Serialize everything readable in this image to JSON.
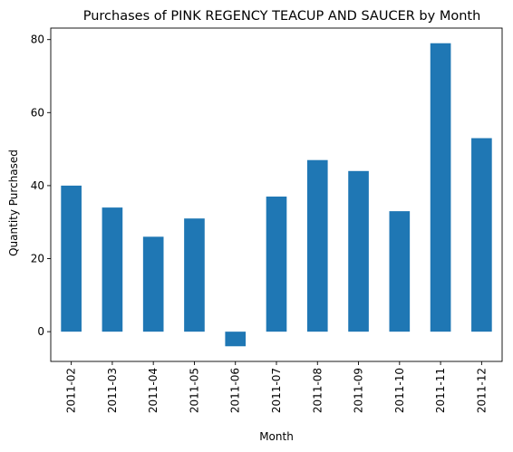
{
  "chart_data": {
    "type": "bar",
    "title": "Purchases of PINK REGENCY TEACUP AND SAUCER by Month",
    "xlabel": "Month",
    "ylabel": "Quantity Purchased",
    "categories": [
      "2011-02",
      "2011-03",
      "2011-04",
      "2011-05",
      "2011-06",
      "2011-07",
      "2011-08",
      "2011-09",
      "2011-10",
      "2011-11",
      "2011-12"
    ],
    "values": [
      40,
      34,
      26,
      31,
      -4,
      37,
      47,
      44,
      33,
      79,
      53
    ],
    "ylim": [
      -8.15,
      83.15
    ],
    "yticks": [
      0,
      20,
      40,
      60,
      80
    ],
    "grid": false,
    "bar_color": "#1f77b4"
  }
}
